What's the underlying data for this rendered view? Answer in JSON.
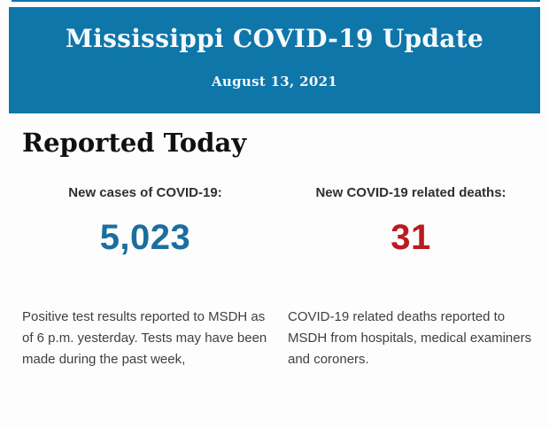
{
  "colors": {
    "page_bg": "#fdfdfe",
    "banner_bg": "#0e76a9",
    "banner_text": "#f5fafc",
    "heading_text": "#101010",
    "label_text": "#2f2f2f",
    "body_text": "#404040",
    "accent_blue": "#1b6e9e",
    "accent_red": "#bc1a20"
  },
  "banner": {
    "title": "Mississippi COVID-19 Update",
    "date": "August 13, 2021"
  },
  "main": {
    "heading": "Reported Today",
    "stats": [
      {
        "label": "New cases of COVID-19:",
        "value": "5,023",
        "description": "Positive test results reported to MSDH as of 6 p.m. yesterday. Tests may have been made during the past week,"
      },
      {
        "label": "New COVID-19 related deaths:",
        "value": "31",
        "description": "COVID-19 related deaths reported to MSDH from hospitals, medical examiners and coroners."
      }
    ]
  }
}
